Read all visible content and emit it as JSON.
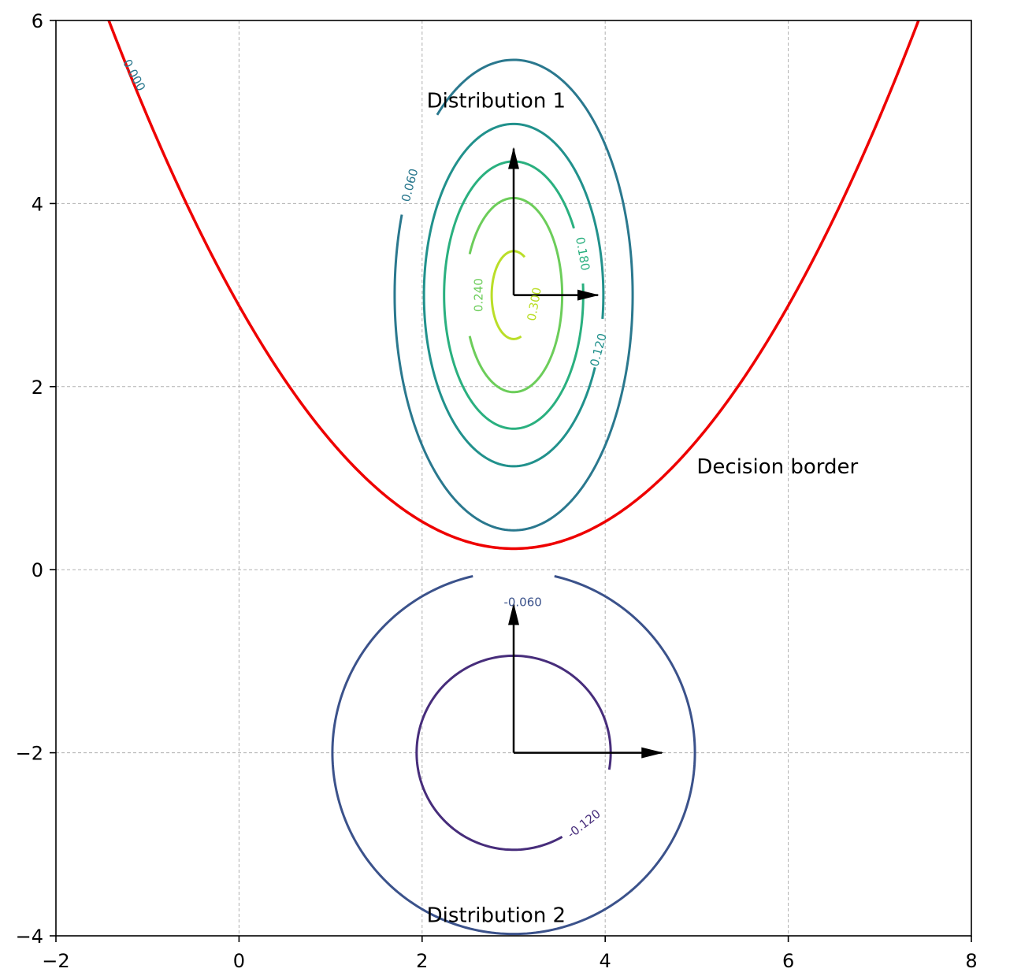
{
  "chart_data": {
    "type": "contour",
    "title": "",
    "xlabel": "",
    "ylabel": "",
    "xlim": [
      -2,
      8
    ],
    "ylim": [
      -4,
      6
    ],
    "grid": true,
    "x_ticks": [
      {
        "value": -2,
        "label": "−2"
      },
      {
        "value": 0,
        "label": "0"
      },
      {
        "value": 2,
        "label": "2"
      },
      {
        "value": 4,
        "label": "4"
      },
      {
        "value": 6,
        "label": "6"
      },
      {
        "value": 8,
        "label": "8"
      }
    ],
    "y_ticks": [
      {
        "value": -4,
        "label": "−4"
      },
      {
        "value": -2,
        "label": "−2"
      },
      {
        "value": 0,
        "label": "0"
      },
      {
        "value": 2,
        "label": "2"
      },
      {
        "value": 4,
        "label": "4"
      },
      {
        "value": 6,
        "label": "6"
      }
    ],
    "distributions": [
      {
        "label": "Distribution 1",
        "label_pos": [
          2.05,
          5.05
        ],
        "center": [
          3,
          3
        ],
        "arrows": [
          {
            "to": [
              3.0,
              4.6
            ]
          },
          {
            "to": [
              3.92,
              3.0
            ]
          }
        ],
        "contours": [
          {
            "level": "0.060",
            "rx": 1.3,
            "ry": 2.57,
            "color": "#2a788e",
            "gap_deg": [
              130,
              160
            ],
            "label_pos": [
              1.87,
              4.2
            ],
            "label_angle": -75
          },
          {
            "level": "0.120",
            "rx": 0.98,
            "ry": 1.87,
            "color": "#21918c",
            "gap_deg": [
              335,
              352
            ],
            "label_pos": [
              3.93,
              2.4
            ],
            "label_angle": -75
          },
          {
            "level": "0.180",
            "rx": 0.76,
            "ry": 1.46,
            "color": "#2ab07f",
            "gap_deg": [
              5,
              30
            ],
            "label_pos": [
              3.75,
              3.45
            ],
            "label_angle": 80
          },
          {
            "level": "0.240",
            "rx": 0.53,
            "ry": 1.06,
            "color": "#6ccd5a",
            "gap_deg": [
              155,
              205
            ],
            "label_pos": [
              2.62,
              3.0
            ],
            "label_angle": -90
          },
          {
            "level": "0.300",
            "rx": 0.24,
            "ry": 0.48,
            "color": "#bade28",
            "gap_deg": [
              -70,
              60
            ],
            "label_pos": [
              3.23,
              2.9
            ],
            "label_angle": -80
          }
        ]
      },
      {
        "label": "Distribution 2",
        "label_pos": [
          2.05,
          -3.85
        ],
        "center": [
          3,
          -2
        ],
        "arrows": [
          {
            "to": [
              3.0,
              -0.38
            ]
          },
          {
            "to": [
              4.62,
              -2.0
            ]
          }
        ],
        "contours": [
          {
            "level": "-0.060",
            "rx": 1.98,
            "ry": 1.98,
            "color": "#3b528b",
            "gap_deg": [
              77,
              103
            ],
            "label_pos": [
              3.1,
              -0.36
            ],
            "label_angle": 0
          },
          {
            "level": "-0.120",
            "rx": 1.06,
            "ry": 1.06,
            "color": "#472d7b",
            "gap_deg": [
              -60,
              -10
            ],
            "label_pos": [
              3.77,
              -2.78
            ],
            "label_angle": -38
          }
        ]
      }
    ],
    "decision_border": {
      "label": "Decision border",
      "label_pos": [
        5.0,
        1.05
      ],
      "level_label": "0.000",
      "level_label_pos": [
        -1.15,
        5.4
      ],
      "level_label_angle": 62,
      "color": "#ee0000",
      "vertex": [
        3.0,
        0.23
      ],
      "coefficient": 0.295
    }
  }
}
